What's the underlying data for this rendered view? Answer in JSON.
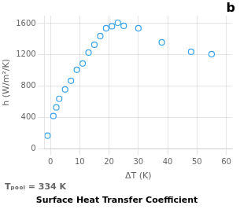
{
  "chart_data": {
    "type": "scatter",
    "title": "Surface Heat Transfer Coefficient",
    "xlabel": "ΔT (K)",
    "ylabel": "h (W/m²/K)",
    "annotations": [
      "b",
      "Tₚₒₒₗ = 334 K"
    ],
    "x": [
      -1,
      1,
      2,
      3,
      5,
      7,
      9,
      11,
      13,
      15,
      17,
      19,
      21,
      23,
      25,
      30,
      38,
      48,
      55
    ],
    "values": [
      170,
      420,
      530,
      640,
      760,
      870,
      1010,
      1090,
      1230,
      1330,
      1440,
      1540,
      1565,
      1610,
      1570,
      1540,
      1360,
      1240,
      1210
    ],
    "xlim": [
      -2,
      62
    ],
    "ylim": [
      0,
      1700
    ],
    "xticks": [
      0,
      10,
      20,
      30,
      40,
      50,
      60
    ],
    "yticks": [
      0,
      400,
      800,
      1200,
      1600
    ],
    "grid": true,
    "marker": "circle"
  }
}
